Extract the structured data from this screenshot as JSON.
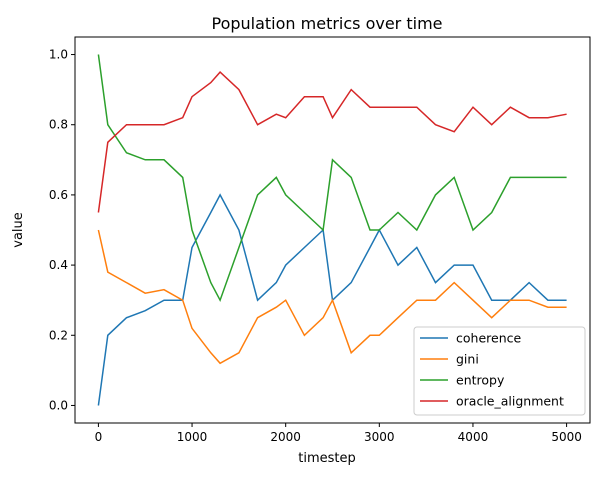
{
  "chart_data": {
    "type": "line",
    "title": "Population metrics over time",
    "xlabel": "timestep",
    "ylabel": "value",
    "xlim": [
      -250,
      5250
    ],
    "ylim": [
      -0.05,
      1.05
    ],
    "xticks": [
      0,
      1000,
      2000,
      3000,
      4000,
      5000
    ],
    "xtick_labels": [
      "0",
      "1000",
      "2000",
      "3000",
      "4000",
      "5000"
    ],
    "yticks": [
      0.0,
      0.2,
      0.4,
      0.6,
      0.8,
      1.0
    ],
    "ytick_labels": [
      "0.0",
      "0.2",
      "0.4",
      "0.6",
      "0.8",
      "1.0"
    ],
    "grid": false,
    "legend_position": "lower-right",
    "x": [
      0,
      100,
      300,
      500,
      700,
      900,
      1000,
      1200,
      1300,
      1500,
      1700,
      1900,
      2000,
      2200,
      2400,
      2500,
      2700,
      2900,
      3000,
      3200,
      3400,
      3600,
      3800,
      4000,
      4200,
      4400,
      4600,
      4800,
      5000
    ],
    "series": [
      {
        "name": "coherence",
        "color": "#1f77b4",
        "values": [
          0.0,
          0.2,
          0.25,
          0.27,
          0.3,
          0.3,
          0.45,
          0.55,
          0.6,
          0.5,
          0.3,
          0.35,
          0.4,
          0.45,
          0.5,
          0.3,
          0.35,
          0.45,
          0.5,
          0.4,
          0.45,
          0.35,
          0.4,
          0.4,
          0.3,
          0.3,
          0.35,
          0.3,
          0.3
        ]
      },
      {
        "name": "gini",
        "color": "#ff7f0e",
        "values": [
          0.5,
          0.38,
          0.35,
          0.32,
          0.33,
          0.3,
          0.22,
          0.15,
          0.12,
          0.15,
          0.25,
          0.28,
          0.3,
          0.2,
          0.25,
          0.3,
          0.15,
          0.2,
          0.2,
          0.25,
          0.3,
          0.3,
          0.35,
          0.3,
          0.25,
          0.3,
          0.3,
          0.28,
          0.28
        ]
      },
      {
        "name": "entropy",
        "color": "#2ca02c",
        "values": [
          1.0,
          0.8,
          0.72,
          0.7,
          0.7,
          0.65,
          0.5,
          0.35,
          0.3,
          0.45,
          0.6,
          0.65,
          0.6,
          0.55,
          0.5,
          0.7,
          0.65,
          0.5,
          0.5,
          0.55,
          0.5,
          0.6,
          0.65,
          0.5,
          0.55,
          0.65,
          0.65,
          0.65,
          0.65
        ]
      },
      {
        "name": "oracle_alignment",
        "color": "#d62728",
        "values": [
          0.55,
          0.75,
          0.8,
          0.8,
          0.8,
          0.82,
          0.88,
          0.92,
          0.95,
          0.9,
          0.8,
          0.83,
          0.82,
          0.88,
          0.88,
          0.82,
          0.9,
          0.85,
          0.85,
          0.85,
          0.85,
          0.8,
          0.78,
          0.85,
          0.8,
          0.85,
          0.82,
          0.82,
          0.83
        ]
      }
    ]
  }
}
